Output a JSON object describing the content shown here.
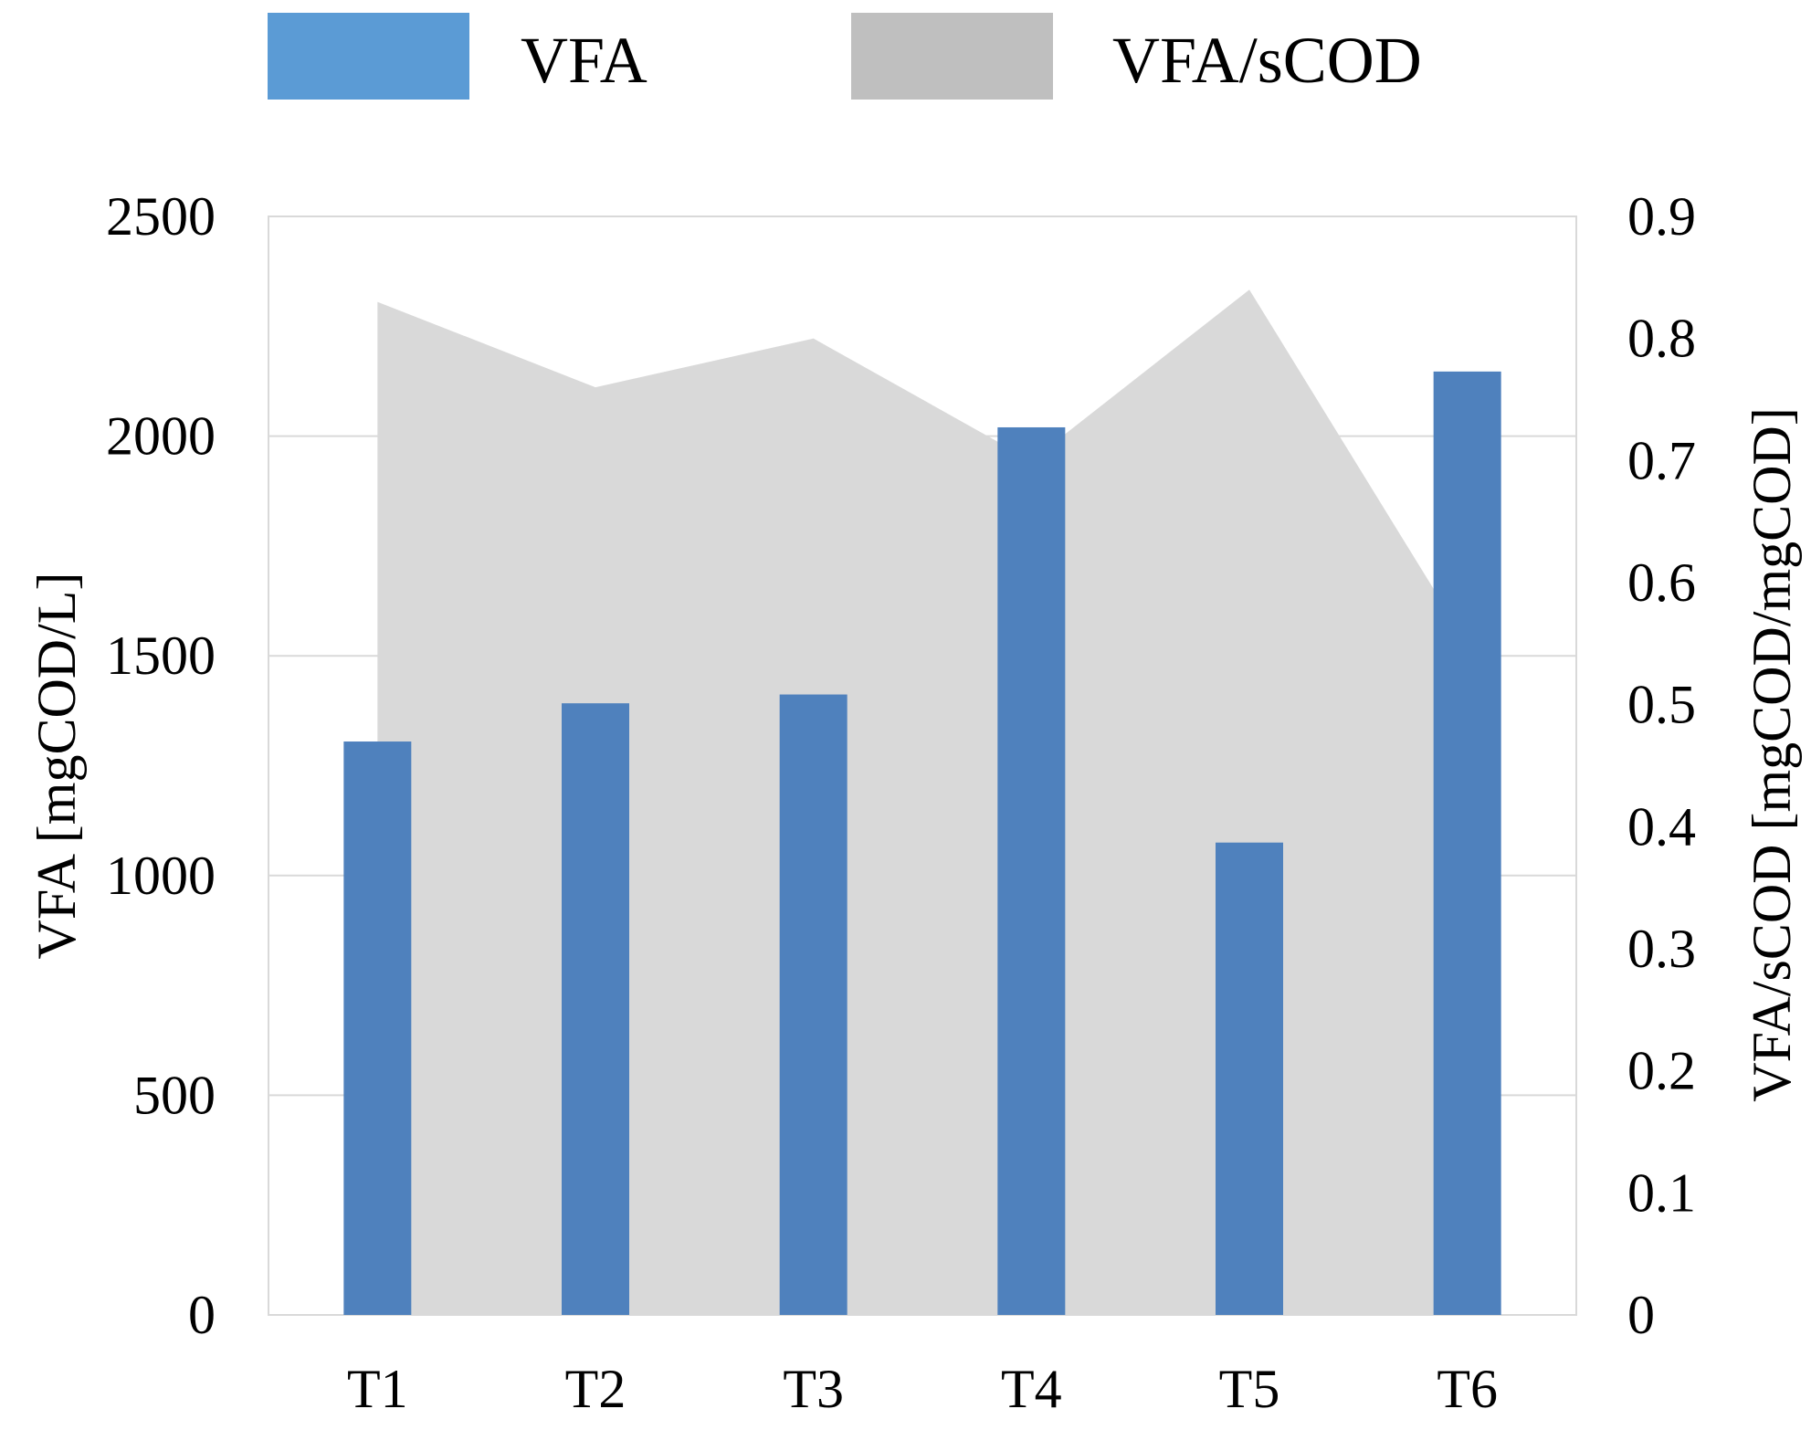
{
  "chart_data": {
    "type": "bar",
    "categories": [
      "T1",
      "T2",
      "T3",
      "T4",
      "T5",
      "T6"
    ],
    "series": [
      {
        "name": "VFA",
        "kind": "bar",
        "axis": "left",
        "color": "#4f81bd",
        "values": [
          1305,
          1392,
          1412,
          2020,
          1075,
          2147
        ]
      },
      {
        "name": "VFA/sCOD",
        "kind": "area",
        "axis": "right",
        "color": "#d9d9d9",
        "values": [
          0.83,
          0.76,
          0.8,
          0.7,
          0.84,
          0.55
        ]
      }
    ],
    "legend": {
      "position": "top",
      "items": [
        {
          "label": "VFA",
          "color": "#5b9bd5"
        },
        {
          "label": "VFA/sCOD",
          "color": "#bfbfbf"
        }
      ]
    },
    "y_left": {
      "label": "VFA [mgCOD/L]",
      "min": 0,
      "max": 2500,
      "ticks": [
        "0",
        "500",
        "1000",
        "1500",
        "2000",
        "2500"
      ]
    },
    "y_right": {
      "label": "VFA/sCOD [mgCOD/mgCOD]",
      "min": 0,
      "max": 0.9,
      "ticks": [
        "0",
        "0.1",
        "0.2",
        "0.3",
        "0.4",
        "0.5",
        "0.6",
        "0.7",
        "0.8",
        "0.9"
      ]
    },
    "grid": true,
    "gridColor": "#d9d9d9"
  }
}
